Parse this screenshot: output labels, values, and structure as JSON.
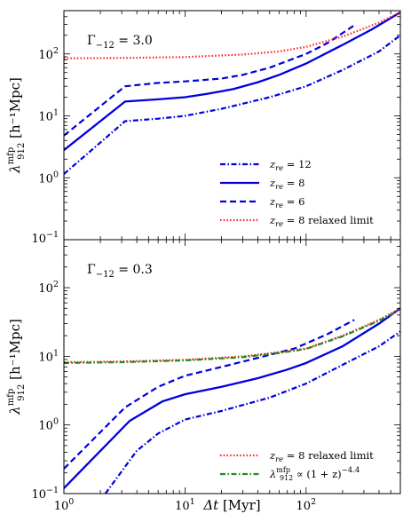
{
  "chart_data": [
    {
      "type": "line",
      "panel": "top",
      "annotation": "Γ₋₁₂ = 3.0",
      "ylabel": "λ₉₁₂ᵐᶠᵖ [h⁻¹Mpc]",
      "xscale": "log",
      "yscale": "log",
      "xlim": [
        1,
        600
      ],
      "ylim": [
        0.1,
        500
      ],
      "grid": false,
      "legend": "bottom-right",
      "series": [
        {
          "name": "z_re = 12",
          "style": "dashdot",
          "color": "#0000dd",
          "x": [
            1,
            3.2,
            6,
            10,
            20,
            50,
            100,
            200,
            400,
            600
          ],
          "y": [
            1.15,
            8.2,
            9.0,
            10.0,
            13.0,
            20.0,
            30.0,
            55.0,
            110.0,
            200.0
          ]
        },
        {
          "name": "z_re = 8",
          "style": "solid",
          "color": "#0000dd",
          "x": [
            1,
            3.2,
            6,
            10,
            15,
            25,
            40,
            60,
            100,
            200,
            350,
            600
          ],
          "y": [
            2.8,
            17.0,
            18.5,
            20.0,
            22.5,
            27.0,
            35.0,
            46.0,
            70.0,
            140.0,
            250.0,
            470.0
          ]
        },
        {
          "name": "z_re = 6",
          "style": "dashed",
          "color": "#0000dd",
          "x": [
            1,
            3.2,
            6,
            10,
            20,
            30,
            50,
            100,
            150,
            250
          ],
          "y": [
            4.8,
            30.0,
            34.0,
            36.0,
            40.0,
            46.0,
            60.0,
            100.0,
            150.0,
            290.0
          ]
        },
        {
          "name": "z_re = 8 relaxed limit",
          "style": "dotted",
          "color": "#ff2020",
          "x": [
            1,
            3,
            10,
            30,
            60,
            100,
            200,
            400,
            600
          ],
          "y": [
            85.0,
            86.0,
            89.0,
            98.0,
            110.0,
            130.0,
            190.0,
            320.0,
            470.0
          ]
        }
      ],
      "xticks": [
        "10^0",
        "10^1",
        "10^2"
      ],
      "yticks": [
        "10^-1",
        "10^0",
        "10^1",
        "10^2"
      ]
    },
    {
      "type": "line",
      "panel": "bottom",
      "annotation": "Γ₋₁₂ = 0.3",
      "xlabel": "Δt [Myr]",
      "ylabel": "λ₉₁₂ᵐᶠᵖ [h⁻¹Mpc]",
      "xscale": "log",
      "yscale": "log",
      "xlim": [
        1,
        600
      ],
      "ylim": [
        0.1,
        500
      ],
      "grid": false,
      "legend": "bottom-right",
      "series": [
        {
          "name": "z_re = 12",
          "style": "dashdot",
          "color": "#0000dd",
          "x": [
            2.2,
            4,
            6,
            10,
            20,
            50,
            100,
            200,
            400,
            600
          ],
          "y": [
            0.1,
            0.42,
            0.75,
            1.2,
            1.6,
            2.5,
            4.0,
            7.5,
            14.0,
            23.0
          ]
        },
        {
          "name": "z_re = 8",
          "style": "solid",
          "color": "#0000dd",
          "x": [
            1,
            3.5,
            6.5,
            10,
            20,
            40,
            70,
            100,
            200,
            400,
            600
          ],
          "y": [
            0.12,
            1.15,
            2.2,
            2.8,
            3.6,
            4.8,
            6.4,
            8.0,
            14.0,
            30.0,
            50.0
          ]
        },
        {
          "name": "z_re = 6",
          "style": "dashed",
          "color": "#0000dd",
          "x": [
            1,
            3.2,
            6,
            10,
            20,
            40,
            80,
            150,
            250
          ],
          "y": [
            0.23,
            1.8,
            3.6,
            5.2,
            7.0,
            9.5,
            13.0,
            21.0,
            34.0
          ]
        },
        {
          "name": "z_re = 8 relaxed limit",
          "style": "dotted",
          "color": "#ff2020",
          "x": [
            1,
            3,
            10,
            30,
            60,
            100,
            200,
            400,
            600
          ],
          "y": [
            8.2,
            8.4,
            8.9,
            10.0,
            11.5,
            13.0,
            20.0,
            34.0,
            50.0
          ]
        },
        {
          "name": "λ₉₁₂ᵐᶠᵖ ∝ (1+z)⁻⁴·⁴",
          "style": "dashdot",
          "color": "#228b22",
          "x": [
            1,
            3,
            10,
            30,
            60,
            100,
            200,
            400,
            600
          ],
          "y": [
            8.0,
            8.2,
            8.7,
            9.7,
            11.2,
            12.8,
            19.5,
            33.0,
            48.0
          ]
        }
      ],
      "xticks": [
        "10^0",
        "10^1",
        "10^2"
      ],
      "yticks": [
        "10^-1",
        "10^0",
        "10^1",
        "10^2"
      ]
    }
  ],
  "legend_top": [
    {
      "label_var": "z",
      "label_sub": "re",
      "label_rest": " = 12",
      "series": 0
    },
    {
      "label_var": "z",
      "label_sub": "re",
      "label_rest": " = 8",
      "series": 1
    },
    {
      "label_var": "z",
      "label_sub": "re",
      "label_rest": " = 6",
      "series": 2
    },
    {
      "label_var": "z",
      "label_sub": "re",
      "label_rest": " = 8 relaxed limit",
      "series": 3
    }
  ],
  "legend_bottom": [
    {
      "label_var": "z",
      "label_sub": "re",
      "label_rest": " = 8 relaxed limit",
      "series": 3
    },
    {
      "label_var": "λ",
      "label_sub": "912",
      "label_sup": "mfp",
      "label_rest": " ∝ (1 + z)",
      "label_exp": "−4.4",
      "series": 4
    }
  ],
  "annotation_top": {
    "main": "Γ",
    "sub": "−12",
    "rest": " = 3.0"
  },
  "annotation_bottom": {
    "main": "Γ",
    "sub": "−12",
    "rest": " = 0.3"
  },
  "ylabel_parts": {
    "sym": "λ",
    "sub": "912",
    "sup": "mfp",
    "unit": "[h⁻¹Mpc]"
  },
  "xlabel_parts": {
    "sym": "Δt",
    "unit": "[Myr]"
  },
  "tick_labels": {
    "base": "10",
    "exps_y": [
      "−1",
      "0",
      "1",
      "2"
    ],
    "exps_x": [
      "0",
      "1",
      "2"
    ]
  }
}
